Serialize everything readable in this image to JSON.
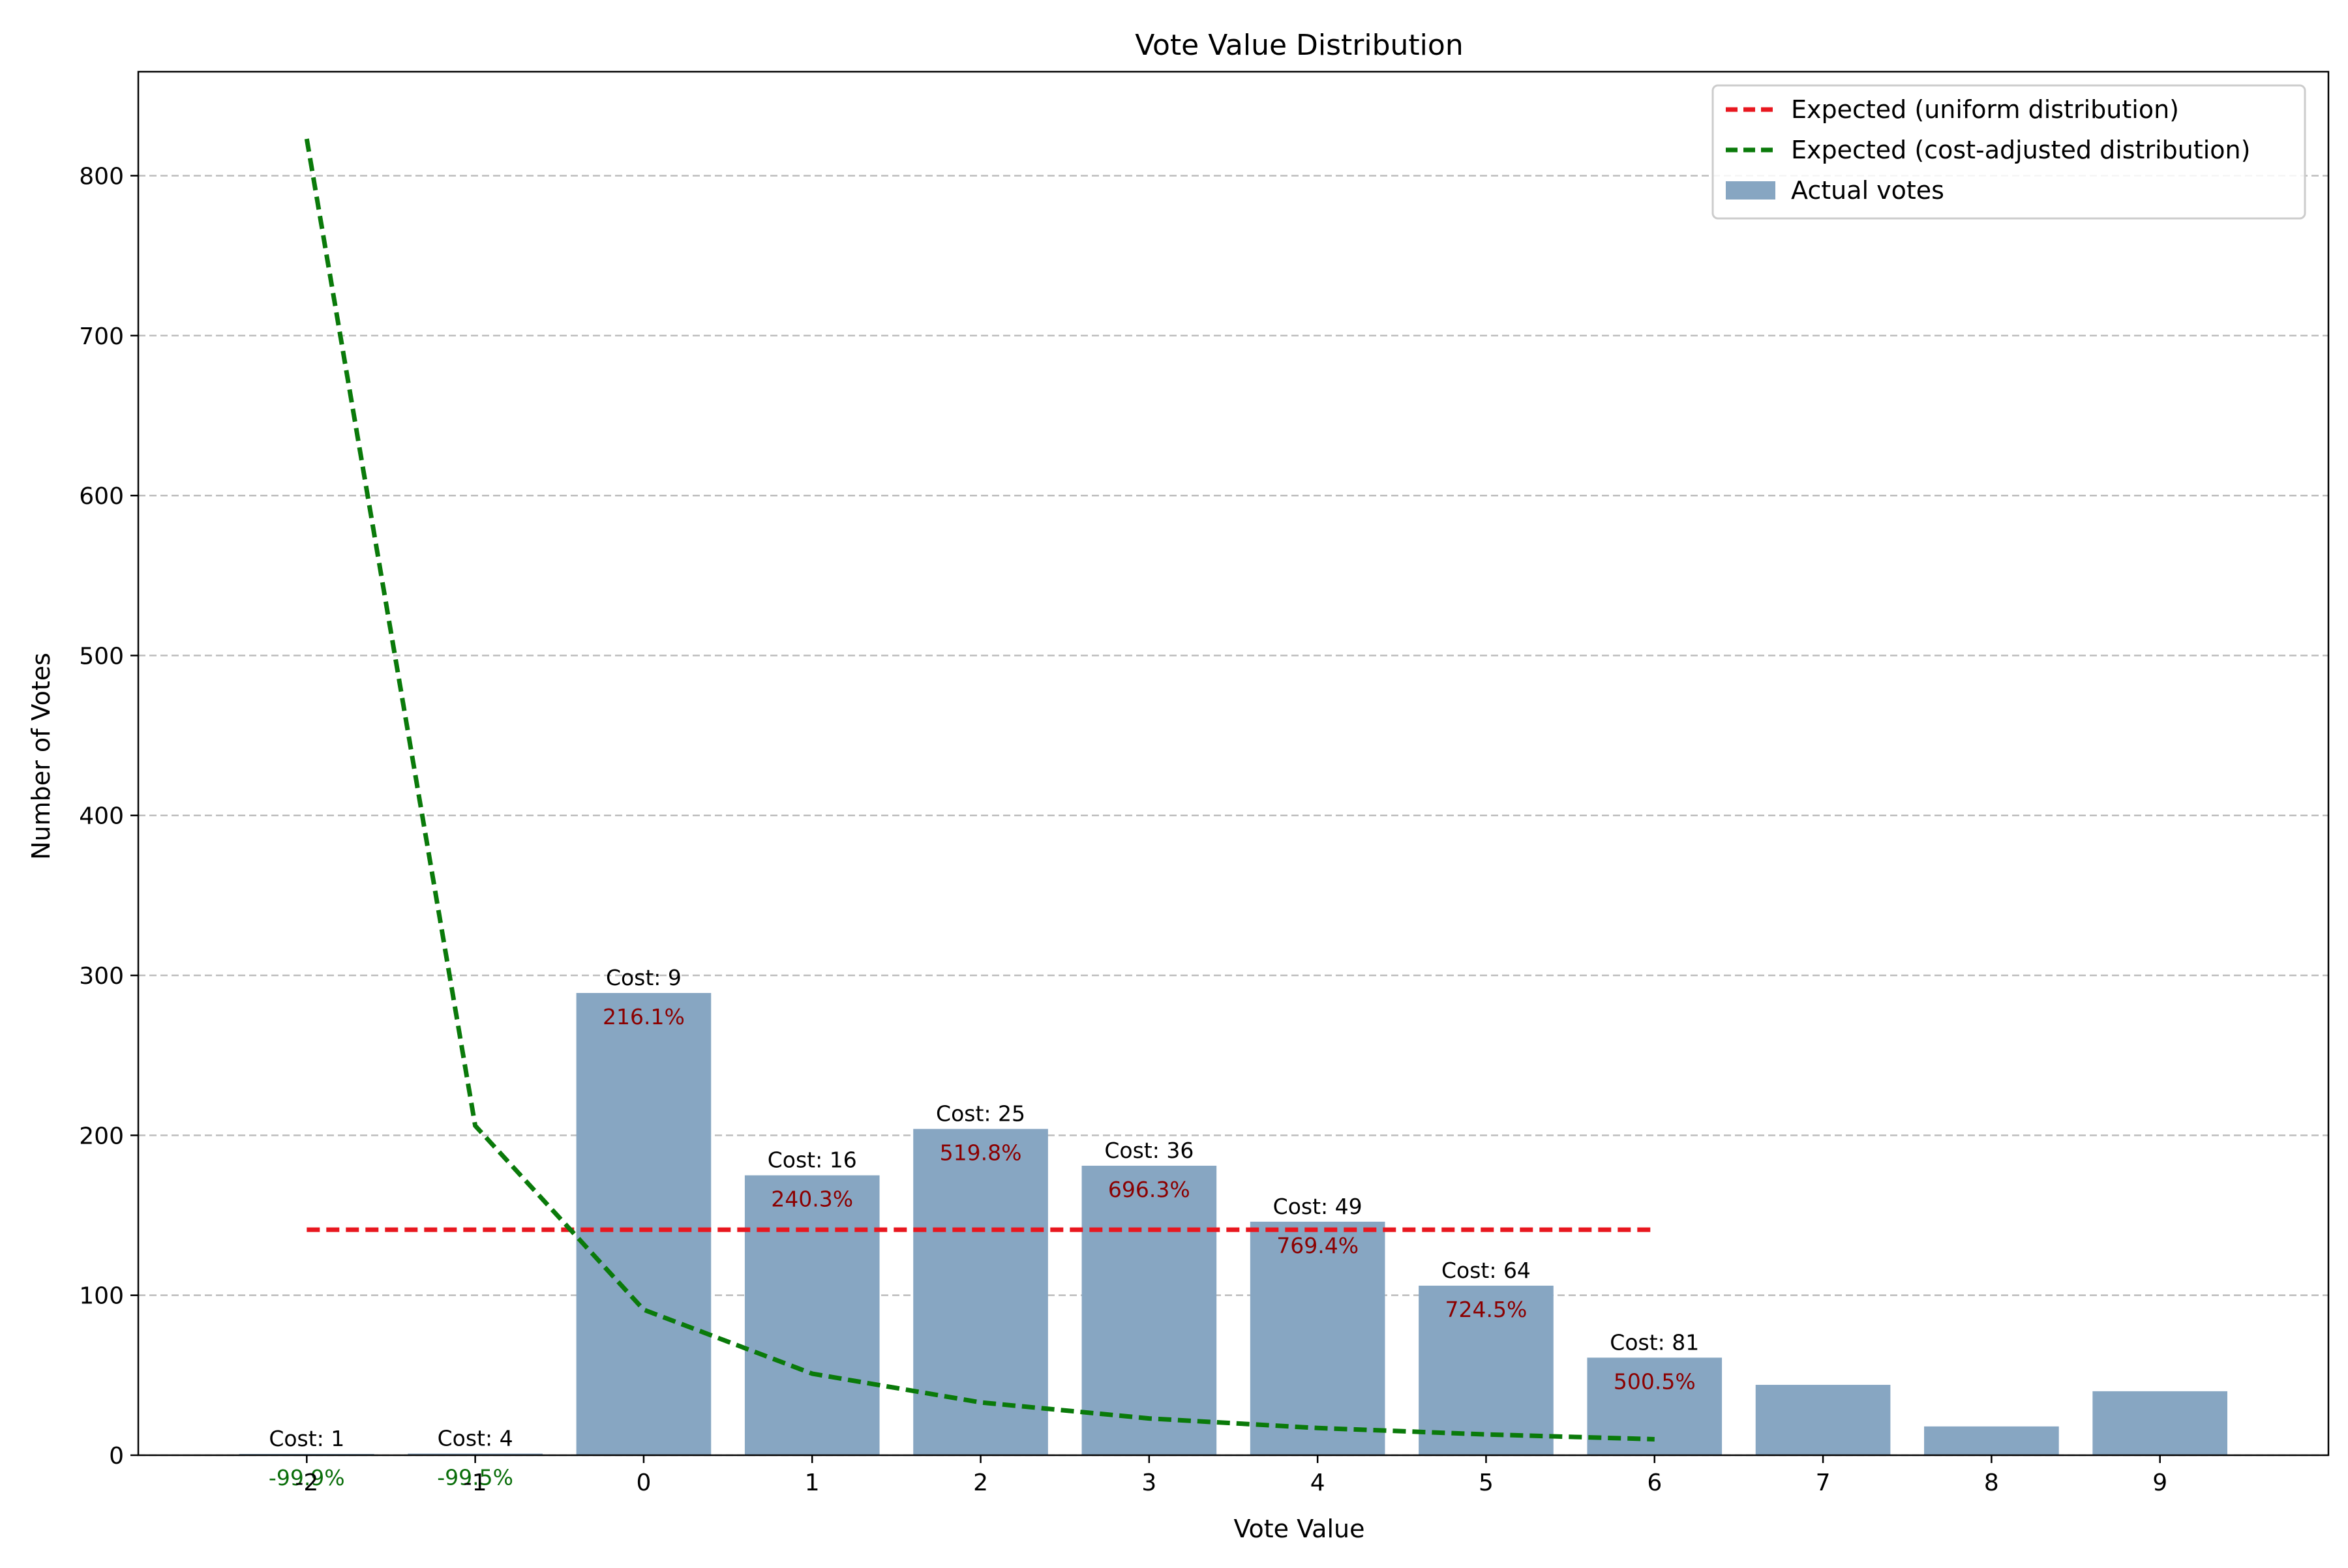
{
  "chart_data": {
    "type": "bar",
    "title": "Vote Value Distribution",
    "xlabel": "Vote Value",
    "ylabel": "Number of Votes",
    "categories": [
      "-2",
      "-1",
      "0",
      "1",
      "2",
      "3",
      "4",
      "5",
      "6",
      "7",
      "8",
      "9"
    ],
    "x": [
      -2,
      -1,
      0,
      1,
      2,
      3,
      4,
      5,
      6,
      7,
      8,
      9
    ],
    "xlim": [
      -3.0,
      10.0
    ],
    "ylim": [
      0,
      865
    ],
    "yticks": [
      0,
      100,
      200,
      300,
      400,
      500,
      600,
      700,
      800
    ],
    "grid": "y-dashed",
    "legend_position": "top-right",
    "series": [
      {
        "name": "Actual votes",
        "kind": "bar",
        "color": "#87a6c2",
        "values": [
          0.8,
          1,
          289,
          175,
          204,
          181,
          146,
          106,
          61,
          44,
          18,
          40
        ]
      },
      {
        "name": "Expected (uniform distribution)",
        "kind": "line",
        "style": "dashed",
        "color": "#e8171f",
        "x": [
          -2,
          -1,
          0,
          1,
          2,
          3,
          4,
          5,
          6
        ],
        "values": [
          141,
          141,
          141,
          141,
          141,
          141,
          141,
          141,
          141
        ]
      },
      {
        "name": "Expected (cost-adjusted distribution)",
        "kind": "line",
        "style": "dashed",
        "color": "#0a7a0a",
        "x": [
          -2,
          -1,
          0,
          1,
          2,
          3,
          4,
          5,
          6
        ],
        "values": [
          823,
          206,
          91,
          51,
          33,
          23,
          17,
          13,
          10
        ]
      }
    ],
    "annotations": [
      {
        "x": -2,
        "cost": "Cost: 1",
        "pct": "-99.9%",
        "pct_color": "#0a6e0a"
      },
      {
        "x": -1,
        "cost": "Cost: 4",
        "pct": "-99.5%",
        "pct_color": "#0a6e0a"
      },
      {
        "x": 0,
        "cost": "Cost: 9",
        "pct": "216.1%",
        "pct_color": "#8b0000"
      },
      {
        "x": 1,
        "cost": "Cost: 16",
        "pct": "240.3%",
        "pct_color": "#8b0000"
      },
      {
        "x": 2,
        "cost": "Cost: 25",
        "pct": "519.8%",
        "pct_color": "#8b0000"
      },
      {
        "x": 3,
        "cost": "Cost: 36",
        "pct": "696.3%",
        "pct_color": "#8b0000"
      },
      {
        "x": 4,
        "cost": "Cost: 49",
        "pct": "769.4%",
        "pct_color": "#8b0000"
      },
      {
        "x": 5,
        "cost": "Cost: 64",
        "pct": "724.5%",
        "pct_color": "#8b0000"
      },
      {
        "x": 6,
        "cost": "Cost: 81",
        "pct": "500.5%",
        "pct_color": "#8b0000"
      }
    ]
  }
}
